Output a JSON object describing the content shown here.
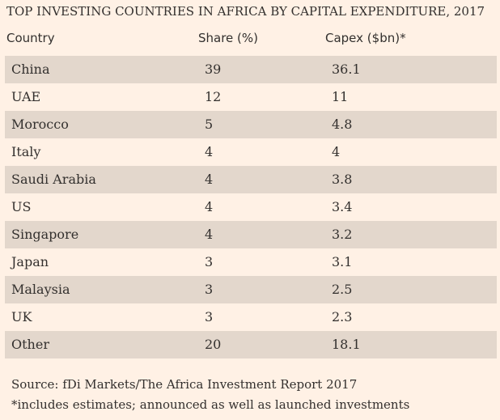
{
  "chart_data": {
    "type": "table",
    "title": "TOP INVESTING COUNTRIES IN AFRICA BY CAPITAL EXPENDITURE, 2017",
    "columns": [
      "Country",
      "Share (%)",
      "Capex ($bn)*"
    ],
    "rows": [
      {
        "country": "China",
        "share": "39",
        "capex": "36.1"
      },
      {
        "country": "UAE",
        "share": "12",
        "capex": "11"
      },
      {
        "country": "Morocco",
        "share": "5",
        "capex": "4.8"
      },
      {
        "country": "Italy",
        "share": "4",
        "capex": "4"
      },
      {
        "country": "Saudi Arabia",
        "share": "4",
        "capex": "3.8"
      },
      {
        "country": "US",
        "share": "4",
        "capex": "3.4"
      },
      {
        "country": "Singapore",
        "share": "4",
        "capex": "3.2"
      },
      {
        "country": "Japan",
        "share": "3",
        "capex": "3.1"
      },
      {
        "country": "Malaysia",
        "share": "3",
        "capex": "2.5"
      },
      {
        "country": "UK",
        "share": "3",
        "capex": "2.3"
      },
      {
        "country": "Other",
        "share": "20",
        "capex": "18.1"
      }
    ],
    "source": "Source: fDi Markets/The Africa Investment Report 2017",
    "note": "*includes estimates; announced as well as launched investments"
  },
  "colors": {
    "background": "#fff1e5",
    "row_shade": "#e3d7cc",
    "text": "#33302e"
  }
}
